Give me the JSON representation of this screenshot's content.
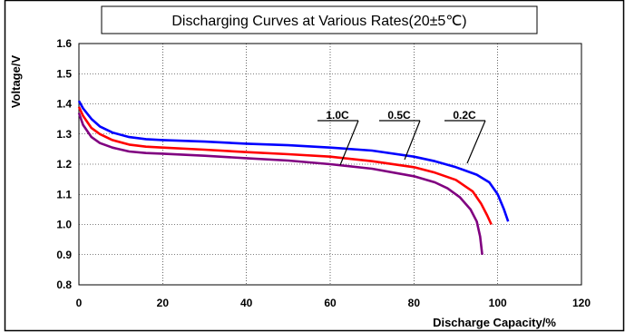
{
  "chart_data": {
    "type": "line",
    "title": "Discharging Curves at Various Rates(20±5℃)",
    "xlabel": "Discharge Capacity/%",
    "ylabel": "Voltage/V",
    "xlim": [
      0,
      120
    ],
    "ylim": [
      0.8,
      1.6
    ],
    "x_ticks": [
      "0",
      "20",
      "40",
      "60",
      "80",
      "100",
      "120"
    ],
    "y_ticks": [
      "0.8",
      "0.9",
      "1.0",
      "1.1",
      "1.2",
      "1.3",
      "1.4",
      "1.5",
      "1.6"
    ],
    "grid": true,
    "series": [
      {
        "name": "0.2C",
        "color": "#0000ff",
        "points": [
          [
            0,
            1.41
          ],
          [
            1,
            1.385
          ],
          [
            3,
            1.35
          ],
          [
            5,
            1.325
          ],
          [
            8,
            1.305
          ],
          [
            12,
            1.29
          ],
          [
            16,
            1.283
          ],
          [
            20,
            1.28
          ],
          [
            30,
            1.275
          ],
          [
            40,
            1.268
          ],
          [
            50,
            1.263
          ],
          [
            60,
            1.255
          ],
          [
            70,
            1.245
          ],
          [
            80,
            1.225
          ],
          [
            85,
            1.21
          ],
          [
            90,
            1.19
          ],
          [
            95,
            1.165
          ],
          [
            98,
            1.14
          ],
          [
            100,
            1.1
          ],
          [
            101.5,
            1.05
          ],
          [
            102.5,
            1.01
          ]
        ]
      },
      {
        "name": "0.5C",
        "color": "#ff0000",
        "points": [
          [
            0,
            1.39
          ],
          [
            1,
            1.36
          ],
          [
            3,
            1.32
          ],
          [
            5,
            1.3
          ],
          [
            8,
            1.28
          ],
          [
            12,
            1.265
          ],
          [
            16,
            1.258
          ],
          [
            20,
            1.255
          ],
          [
            30,
            1.248
          ],
          [
            40,
            1.24
          ],
          [
            50,
            1.233
          ],
          [
            60,
            1.225
          ],
          [
            70,
            1.21
          ],
          [
            80,
            1.19
          ],
          [
            85,
            1.172
          ],
          [
            90,
            1.148
          ],
          [
            94,
            1.11
          ],
          [
            96,
            1.07
          ],
          [
            97.5,
            1.03
          ],
          [
            98.5,
            1.0
          ]
        ]
      },
      {
        "name": "1.0C",
        "color": "#800080",
        "points": [
          [
            0,
            1.37
          ],
          [
            1,
            1.33
          ],
          [
            3,
            1.29
          ],
          [
            5,
            1.27
          ],
          [
            8,
            1.255
          ],
          [
            12,
            1.242
          ],
          [
            16,
            1.237
          ],
          [
            20,
            1.235
          ],
          [
            30,
            1.228
          ],
          [
            40,
            1.22
          ],
          [
            50,
            1.212
          ],
          [
            60,
            1.2
          ],
          [
            70,
            1.185
          ],
          [
            80,
            1.16
          ],
          [
            85,
            1.14
          ],
          [
            88,
            1.12
          ],
          [
            91,
            1.09
          ],
          [
            93.5,
            1.05
          ],
          [
            95,
            1.01
          ],
          [
            95.8,
            0.96
          ],
          [
            96.3,
            0.9
          ]
        ]
      }
    ],
    "annotations": [
      {
        "text": "1.0C"
      },
      {
        "text": "0.5C"
      },
      {
        "text": "0.2C"
      }
    ]
  }
}
